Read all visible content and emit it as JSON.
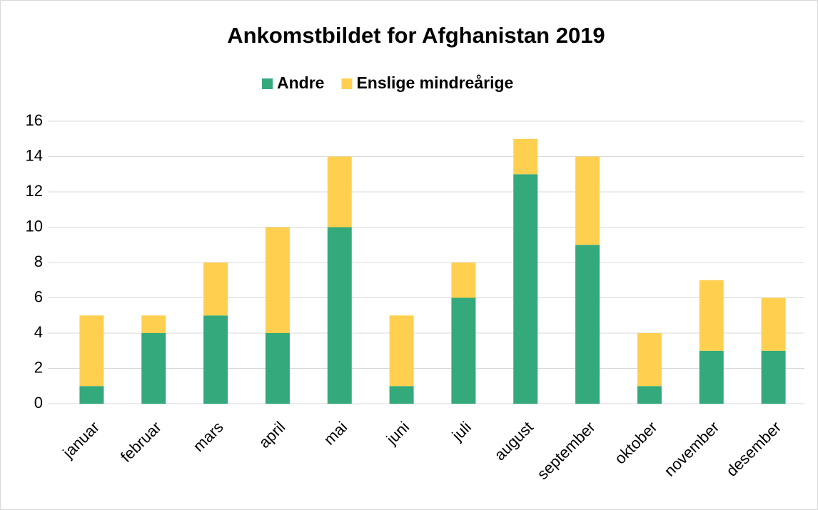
{
  "chart_data": {
    "type": "stacked_bar",
    "title": "Ankomstbildet for Afghanistan 2019",
    "categories": [
      "januar",
      "februar",
      "mars",
      "april",
      "mai",
      "juni",
      "juli",
      "august",
      "september",
      "oktober",
      "november",
      "desember"
    ],
    "series": [
      {
        "name": "Andre",
        "color": "#34a97b",
        "values": [
          1,
          4,
          5,
          4,
          10,
          1,
          6,
          13,
          9,
          1,
          3,
          3
        ]
      },
      {
        "name": "Enslige mindreårige",
        "color": "#ffcf50",
        "values": [
          4,
          1,
          3,
          6,
          4,
          4,
          2,
          2,
          5,
          3,
          4,
          3
        ]
      }
    ],
    "ylim": [
      0,
      16
    ],
    "yticks": [
      0,
      2,
      4,
      6,
      8,
      10,
      12,
      14,
      16
    ],
    "grid": true,
    "legend": "top"
  }
}
